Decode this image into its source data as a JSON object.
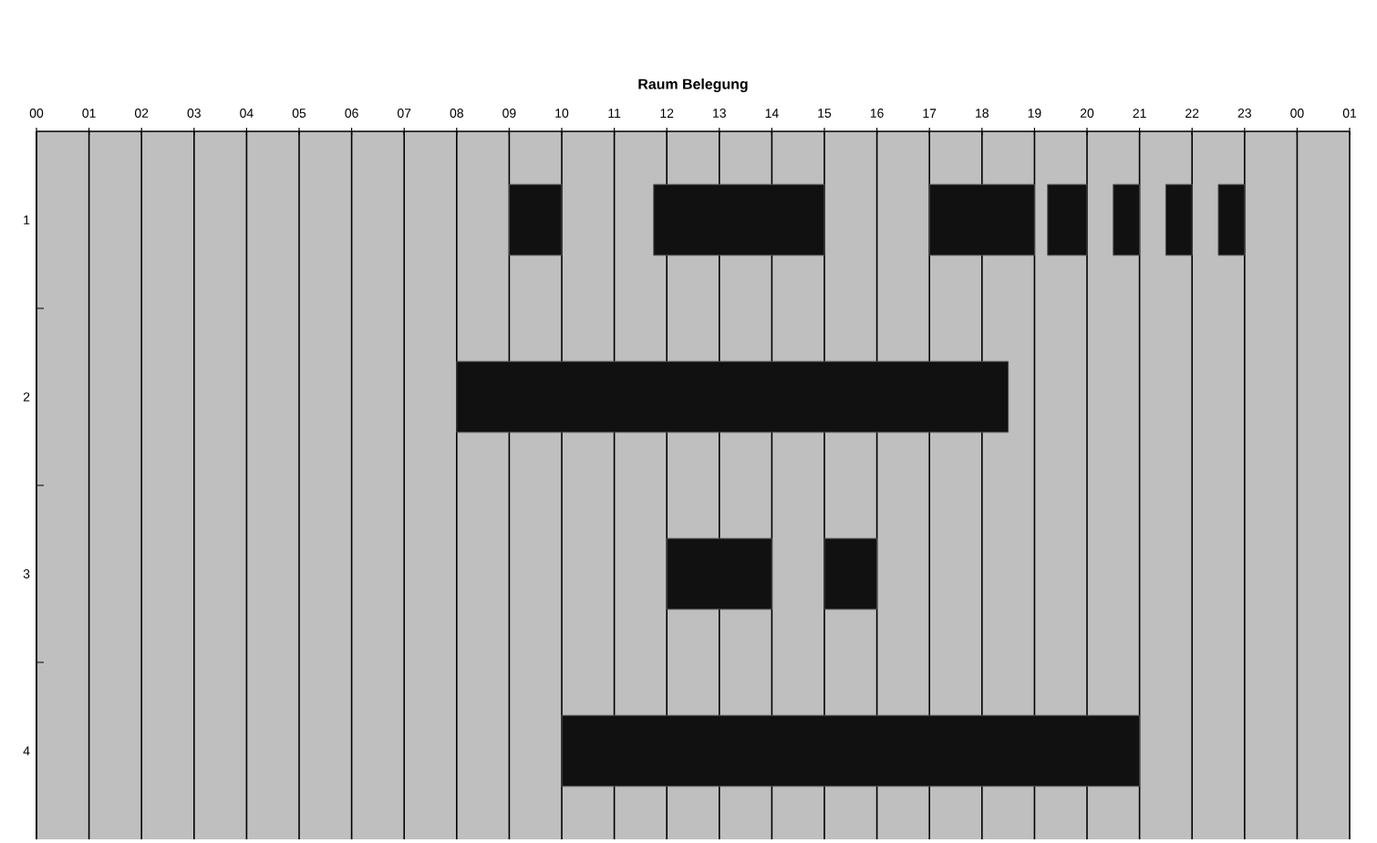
{
  "chart_data": {
    "type": "bar",
    "orientation": "horizontal",
    "title": "Raum Belegung",
    "categories": [
      "1",
      "2",
      "3",
      "4"
    ],
    "series": [
      {
        "color": "#111111",
        "base": [
          9,
          8,
          12,
          10
        ],
        "values": [
          1,
          10.5,
          2,
          11
        ]
      },
      {
        "color": "#111111",
        "base": [
          11.75,
          null,
          15,
          null
        ],
        "values": [
          3.25,
          null,
          1,
          null
        ]
      },
      {
        "color": "#111111",
        "base": [
          17,
          null,
          null,
          null
        ],
        "values": [
          2,
          null,
          null,
          null
        ]
      },
      {
        "color": "#111111",
        "base": [
          19.25,
          null,
          null,
          null
        ],
        "values": [
          0.75,
          null,
          null,
          null
        ]
      },
      {
        "color": "#111111",
        "base": [
          20.5,
          null,
          null,
          null
        ],
        "values": [
          0.5,
          null,
          null,
          null
        ]
      },
      {
        "color": "#111111",
        "base": [
          21.5,
          null,
          null,
          null
        ],
        "values": [
          0.5,
          null,
          null,
          null
        ]
      },
      {
        "color": "#111111",
        "base": [
          22.5,
          null,
          null,
          null
        ],
        "values": [
          0.5,
          null,
          null,
          null
        ]
      }
    ],
    "xlim": [
      0,
      25
    ],
    "xticks": [
      {
        "value": 0,
        "label": "00"
      },
      {
        "value": 1,
        "label": "01"
      },
      {
        "value": 2,
        "label": "02"
      },
      {
        "value": 3,
        "label": "03"
      },
      {
        "value": 4,
        "label": "04"
      },
      {
        "value": 5,
        "label": "05"
      },
      {
        "value": 6,
        "label": "06"
      },
      {
        "value": 7,
        "label": "07"
      },
      {
        "value": 8,
        "label": "08"
      },
      {
        "value": 9,
        "label": "09"
      },
      {
        "value": 10,
        "label": "10"
      },
      {
        "value": 11,
        "label": "11"
      },
      {
        "value": 12,
        "label": "12"
      },
      {
        "value": 13,
        "label": "13"
      },
      {
        "value": 14,
        "label": "14"
      },
      {
        "value": 15,
        "label": "15"
      },
      {
        "value": 16,
        "label": "16"
      },
      {
        "value": 17,
        "label": "17"
      },
      {
        "value": 18,
        "label": "18"
      },
      {
        "value": 19,
        "label": "19"
      },
      {
        "value": 20,
        "label": "20"
      },
      {
        "value": 21,
        "label": "21"
      },
      {
        "value": 22,
        "label": "22"
      },
      {
        "value": 23,
        "label": "23"
      },
      {
        "value": 24,
        "label": "00"
      },
      {
        "value": 25,
        "label": "01"
      }
    ],
    "grid": "x"
  }
}
